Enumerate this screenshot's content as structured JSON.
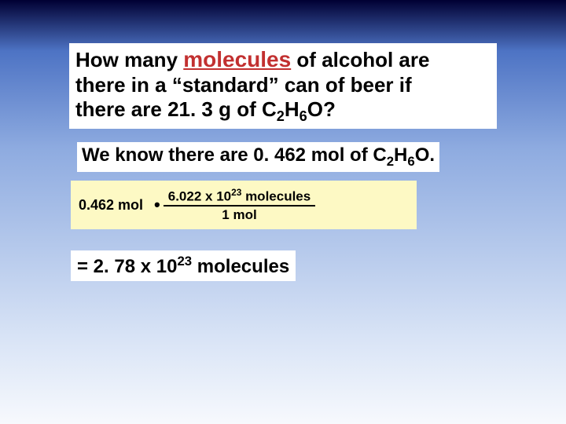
{
  "slide": {
    "background_gradient": [
      "#000033",
      "#4d73c4",
      "#8eabe0",
      "#d9e4f6",
      "#f7f9fd"
    ],
    "question": {
      "pre_emphasis": "How many ",
      "emphasis_word": "molecules",
      "post_emphasis_line1": " of alcohol are",
      "line2": "there in a “standard” can of beer if",
      "line3_pre": "there are 21. 3 g of C",
      "formula_sub1": "2",
      "formula_mid1": "H",
      "formula_sub2": "6",
      "formula_mid2": "O?",
      "box_bg": "#ffffff",
      "emphasis_color": "#c23030",
      "text_color": "#000000",
      "font_size_pt": 20,
      "emphasis_font": "Comic Sans MS"
    },
    "known": {
      "pre": "We know there are 0. 462 mol of C",
      "sub1": "2",
      "mid1": "H",
      "sub2": "6",
      "mid2": "O.",
      "box_bg": "#ffffff",
      "font_size_pt": 18
    },
    "calculation": {
      "box_bg": "#fdf9c4",
      "left_value": "0.462 mol",
      "operator": "•",
      "numerator_pre": "6.022 x 10",
      "numerator_sup": "23",
      "numerator_post": " molecules",
      "denominator": "1 mol",
      "font_size_pt": 13
    },
    "result": {
      "pre": "=  2. 78 x 10",
      "sup": "23",
      "post": " molecules",
      "box_bg": "#ffffff",
      "font_size_pt": 18
    }
  }
}
